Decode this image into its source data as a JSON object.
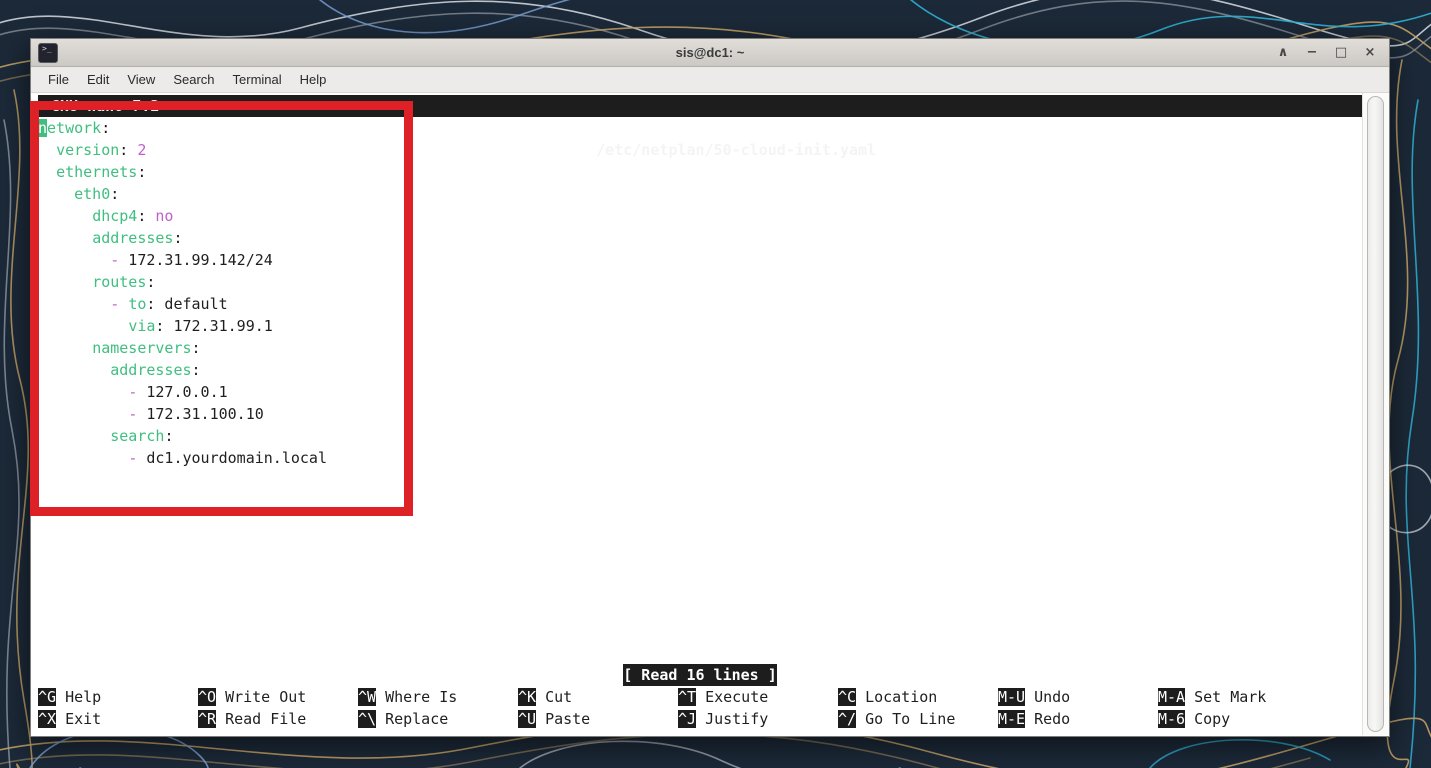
{
  "desktop": {
    "bg_color": "#1c2938",
    "contour_colors": [
      "#d9dee5",
      "#c4a265",
      "#2fb3d6",
      "#7aa2d8"
    ]
  },
  "window": {
    "title": "sis@dc1: ~",
    "controls": [
      {
        "name": "shade",
        "glyph": "∧"
      },
      {
        "name": "minimize",
        "glyph": "−"
      },
      {
        "name": "maximize",
        "glyph": "□"
      },
      {
        "name": "close",
        "glyph": "×"
      }
    ],
    "menu_items": [
      "File",
      "Edit",
      "View",
      "Search",
      "Terminal",
      "Help"
    ]
  },
  "nano": {
    "app_label": "GNU nano 7.2",
    "file_path": "/etc/netplan/50-cloud-init.yaml",
    "status_message": "[ Read 16 lines ]",
    "editor_lines": [
      {
        "segments": [
          {
            "t": "n",
            "c": "cursor"
          },
          {
            "t": "etwork",
            "c": "key"
          },
          {
            "t": ":",
            "c": "plain"
          }
        ]
      },
      {
        "segments": [
          {
            "t": "  ",
            "c": "plain"
          },
          {
            "t": "version",
            "c": "key"
          },
          {
            "t": ": ",
            "c": "plain"
          },
          {
            "t": "2",
            "c": "val"
          }
        ]
      },
      {
        "segments": [
          {
            "t": "  ",
            "c": "plain"
          },
          {
            "t": "ethernets",
            "c": "key"
          },
          {
            "t": ":",
            "c": "plain"
          }
        ]
      },
      {
        "segments": [
          {
            "t": "    ",
            "c": "plain"
          },
          {
            "t": "eth0",
            "c": "key"
          },
          {
            "t": ":",
            "c": "plain"
          }
        ]
      },
      {
        "segments": [
          {
            "t": "      ",
            "c": "plain"
          },
          {
            "t": "dhcp4",
            "c": "key"
          },
          {
            "t": ": ",
            "c": "plain"
          },
          {
            "t": "no",
            "c": "val"
          }
        ]
      },
      {
        "segments": [
          {
            "t": "      ",
            "c": "plain"
          },
          {
            "t": "addresses",
            "c": "key"
          },
          {
            "t": ":",
            "c": "plain"
          }
        ]
      },
      {
        "segments": [
          {
            "t": "        ",
            "c": "plain"
          },
          {
            "t": "-",
            "c": "dash"
          },
          {
            "t": " 172.31.99.142/24",
            "c": "plain"
          }
        ]
      },
      {
        "segments": [
          {
            "t": "      ",
            "c": "plain"
          },
          {
            "t": "routes",
            "c": "key"
          },
          {
            "t": ":",
            "c": "plain"
          }
        ]
      },
      {
        "segments": [
          {
            "t": "        ",
            "c": "plain"
          },
          {
            "t": "-",
            "c": "dash"
          },
          {
            "t": " ",
            "c": "plain"
          },
          {
            "t": "to",
            "c": "key"
          },
          {
            "t": ": default",
            "c": "plain"
          }
        ]
      },
      {
        "segments": [
          {
            "t": "          ",
            "c": "plain"
          },
          {
            "t": "via",
            "c": "key"
          },
          {
            "t": ": 172.31.99.1",
            "c": "plain"
          }
        ]
      },
      {
        "segments": [
          {
            "t": "      ",
            "c": "plain"
          },
          {
            "t": "nameservers",
            "c": "key"
          },
          {
            "t": ":",
            "c": "plain"
          }
        ]
      },
      {
        "segments": [
          {
            "t": "        ",
            "c": "plain"
          },
          {
            "t": "addresses",
            "c": "key"
          },
          {
            "t": ":",
            "c": "plain"
          }
        ]
      },
      {
        "segments": [
          {
            "t": "          ",
            "c": "plain"
          },
          {
            "t": "-",
            "c": "dash"
          },
          {
            "t": " 127.0.0.1",
            "c": "plain"
          }
        ]
      },
      {
        "segments": [
          {
            "t": "          ",
            "c": "plain"
          },
          {
            "t": "-",
            "c": "dash"
          },
          {
            "t": " 172.31.100.10",
            "c": "plain"
          }
        ]
      },
      {
        "segments": [
          {
            "t": "        ",
            "c": "plain"
          },
          {
            "t": "search",
            "c": "key"
          },
          {
            "t": ":",
            "c": "plain"
          }
        ]
      },
      {
        "segments": [
          {
            "t": "          ",
            "c": "plain"
          },
          {
            "t": "-",
            "c": "dash"
          },
          {
            "t": " dc1.yourdomain.local",
            "c": "plain"
          }
        ]
      }
    ],
    "shortcut_rows": [
      [
        {
          "key": "^G",
          "label": "Help"
        },
        {
          "key": "^O",
          "label": "Write Out"
        },
        {
          "key": "^W",
          "label": "Where Is"
        },
        {
          "key": "^K",
          "label": "Cut"
        },
        {
          "key": "^T",
          "label": "Execute"
        },
        {
          "key": "^C",
          "label": "Location"
        },
        {
          "key": "M-U",
          "label": "Undo"
        },
        {
          "key": "M-A",
          "label": "Set Mark"
        }
      ],
      [
        {
          "key": "^X",
          "label": "Exit"
        },
        {
          "key": "^R",
          "label": "Read File"
        },
        {
          "key": "^\\",
          "label": "Replace"
        },
        {
          "key": "^U",
          "label": "Paste"
        },
        {
          "key": "^J",
          "label": "Justify"
        },
        {
          "key": "^/",
          "label": "Go To Line"
        },
        {
          "key": "M-E",
          "label": "Redo"
        },
        {
          "key": "M-6",
          "label": "Copy"
        }
      ]
    ]
  },
  "syntax_colors": {
    "key": "#3ebf7f",
    "value": "#c061cb",
    "dash": "#c061cb",
    "plain": "#1f1f1f",
    "cursor_bg": "#3ebf7f",
    "nano_bar_bg": "#1d1d1d"
  },
  "annotation": {
    "shape": "rectangle",
    "color": "#de2027"
  }
}
